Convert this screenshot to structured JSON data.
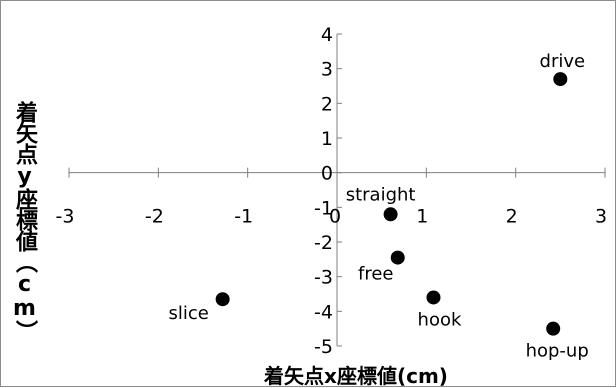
{
  "chart_data": {
    "type": "scatter",
    "xlabel": "着矢点x座標値(cm)",
    "ylabel": "着矢点y座標値（cm）",
    "xlim": [
      -3,
      3
    ],
    "ylim": [
      -5,
      4
    ],
    "x_ticks": [
      -3,
      -2,
      -1,
      0,
      1,
      2,
      3
    ],
    "y_ticks": [
      4,
      3,
      2,
      1,
      0,
      -1,
      -2,
      -3,
      -4,
      -5
    ],
    "grid": false,
    "legend": "none",
    "marker_color": "#000000",
    "points": [
      {
        "label": "drive",
        "x": 2.5,
        "y": 2.7
      },
      {
        "label": "straight",
        "x": 0.6,
        "y": -1.2
      },
      {
        "label": "free",
        "x": 0.68,
        "y": -2.45
      },
      {
        "label": "hook",
        "x": 1.08,
        "y": -3.6
      },
      {
        "label": "slice",
        "x": -1.28,
        "y": -3.65
      },
      {
        "label": "hop-up",
        "x": 2.42,
        "y": -4.5
      }
    ]
  }
}
